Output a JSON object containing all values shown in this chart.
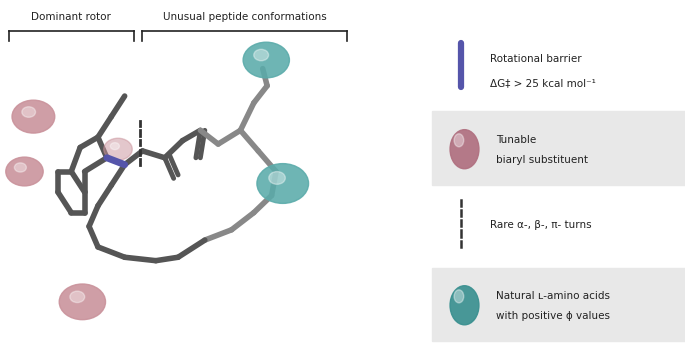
{
  "fig_width": 6.85,
  "fig_height": 3.43,
  "dpi": 100,
  "bg_color": "#ffffff",
  "bracket_color": "#222222",
  "label_dominant": "Dominant rotor",
  "label_unusual": "Unusual peptide conformations",
  "legend_items": [
    {
      "type": "line",
      "color": "#5555aa",
      "label1": "Rotational barrier",
      "label2": "ΔG‡ > 25 kcal mol⁻¹",
      "bg": false
    },
    {
      "type": "circle",
      "color": "#b07080",
      "label1": "Tunable",
      "label2": "biaryl substituent",
      "bg": true
    },
    {
      "type": "dashed",
      "color": "#333333",
      "label1": "Rare α-, β-, π- turns",
      "label2": "",
      "bg": false
    },
    {
      "type": "circle",
      "color": "#3a9090",
      "label1": "Natural ʟ-amino acids",
      "label2": "with positive ϕ values",
      "bg": true
    }
  ],
  "purple_bond_color": "#5555aa",
  "gray_bond_color": "#888888",
  "dark_gray_bond_color": "#555555",
  "pink_sphere_color": "#c9919a",
  "teal_sphere_color": "#5aabaa"
}
